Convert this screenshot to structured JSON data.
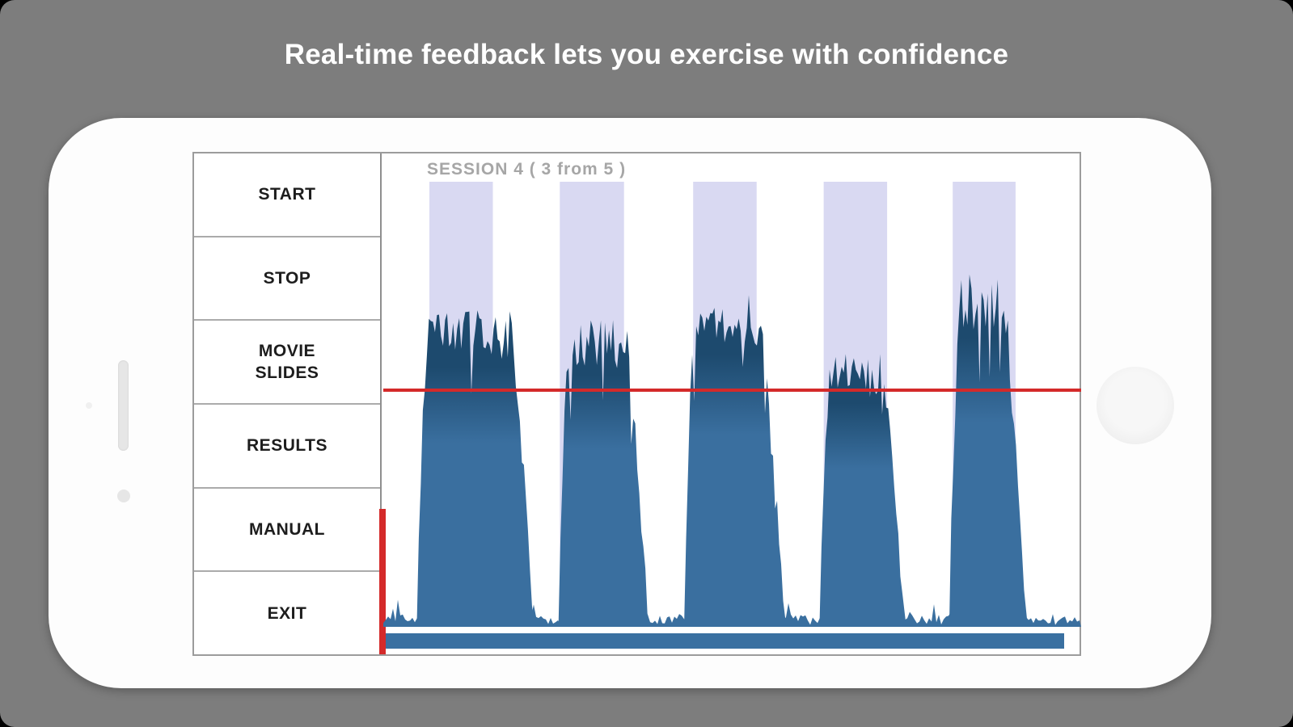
{
  "page": {
    "caption": "Real-time feedback lets you exercise with confidence",
    "background_color": "#7d7d7d"
  },
  "sidebar": {
    "items": [
      {
        "label": "START"
      },
      {
        "label": "STOP"
      },
      {
        "label": "MOVIE\nSLIDES"
      },
      {
        "label": "RESULTS"
      },
      {
        "label": "MANUAL"
      },
      {
        "label": "EXIT"
      }
    ]
  },
  "chart_data": {
    "type": "area",
    "title": "SESSION 4  ( 3 from 5 )",
    "xlabel": "",
    "ylabel": "",
    "ylim": [
      0,
      1
    ],
    "grid": false,
    "legend": null,
    "threshold": {
      "value": 0.5,
      "color": "#d42a2a"
    },
    "target_zones": {
      "color": "#d9d9f2",
      "bands": [
        [
          0.066,
          0.157
        ],
        [
          0.253,
          0.345
        ],
        [
          0.444,
          0.535
        ],
        [
          0.631,
          0.722
        ],
        [
          0.816,
          0.906
        ]
      ]
    },
    "bursts": [
      {
        "x0": 0.048,
        "x1": 0.214,
        "amplitude": 0.64
      },
      {
        "x0": 0.251,
        "x1": 0.379,
        "amplitude": 0.62
      },
      {
        "x0": 0.431,
        "x1": 0.574,
        "amplitude": 0.67
      },
      {
        "x0": 0.625,
        "x1": 0.746,
        "amplitude": 0.55
      },
      {
        "x0": 0.811,
        "x1": 0.92,
        "amplitude": 0.71
      }
    ],
    "noise_floor_amplitude": 0.025,
    "fill_color": "#3a6f9f",
    "fill_color_top": "#1d4a6e",
    "progress_bar_color": "#3a70a1"
  }
}
